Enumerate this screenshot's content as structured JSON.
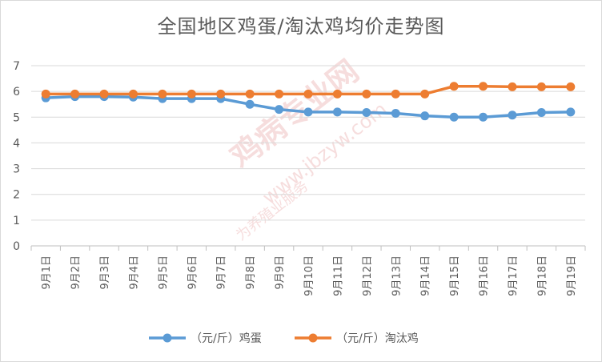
{
  "watermark": {
    "text1": "鸡病专业网",
    "text2": "www.jbzyw.com",
    "text3": "为养殖业服务"
  },
  "chart_data": {
    "type": "line",
    "title": "全国地区鸡蛋/淘汰鸡均价走势图",
    "xlabel": "",
    "ylabel": "",
    "ylim": [
      0,
      7
    ],
    "yticks": [
      0,
      1,
      2,
      3,
      4,
      5,
      6,
      7
    ],
    "grid": true,
    "legend_position": "bottom",
    "categories": [
      "9月1日",
      "9月2日",
      "9月3日",
      "9月4日",
      "9月5日",
      "9月6日",
      "9月7日",
      "9月8日",
      "9月9日",
      "9月10日",
      "9月11日",
      "9月12日",
      "9月13日",
      "9月14日",
      "9月15日",
      "9月16日",
      "9月17日",
      "9月18日",
      "9月19日"
    ],
    "series": [
      {
        "name": "（元/斤）鸡蛋",
        "color": "#5b9bd5",
        "values": [
          5.75,
          5.8,
          5.8,
          5.78,
          5.72,
          5.72,
          5.72,
          5.5,
          5.3,
          5.2,
          5.2,
          5.18,
          5.15,
          5.05,
          5.0,
          5.0,
          5.08,
          5.18,
          5.2
        ]
      },
      {
        "name": "（元/斤）淘汰鸡",
        "color": "#ed7d31",
        "values": [
          5.9,
          5.9,
          5.9,
          5.9,
          5.9,
          5.9,
          5.9,
          5.9,
          5.9,
          5.9,
          5.9,
          5.9,
          5.9,
          5.9,
          6.2,
          6.2,
          6.18,
          6.18,
          6.18
        ]
      }
    ]
  }
}
